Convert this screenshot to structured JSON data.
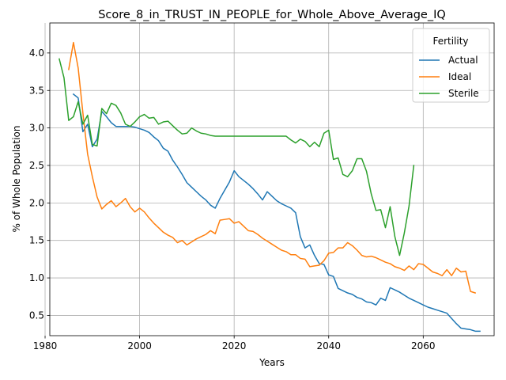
{
  "chart_data": {
    "type": "line",
    "title": "Score_8_in_TRUST_IN_PEOPLE_for_Whole_Above_Average_IQ",
    "xlabel": "Years",
    "ylabel": "% of Whole Population",
    "xlim": [
      1981,
      2075
    ],
    "ylim": [
      0.23,
      4.4
    ],
    "xticks": [
      1980,
      2000,
      2020,
      2040,
      2060
    ],
    "yticks": [
      0.5,
      1.0,
      1.5,
      2.0,
      2.5,
      3.0,
      3.5,
      4.0
    ],
    "ytick_labels": [
      "0.5",
      "1.0",
      "1.5",
      "2.0",
      "2.5",
      "3.0",
      "3.5",
      "4.0"
    ],
    "grid": true,
    "legend": {
      "title": "Fertility",
      "placement": "top-right"
    },
    "series": [
      {
        "name": "Actual",
        "color": "#1f77b4",
        "points": [
          [
            1986,
            3.45
          ],
          [
            1987,
            3.4
          ],
          [
            1988,
            2.95
          ],
          [
            1989,
            3.05
          ],
          [
            1990,
            2.75
          ],
          [
            1991,
            2.85
          ],
          [
            1992,
            3.22
          ],
          [
            1993,
            3.15
          ],
          [
            1994,
            3.07
          ],
          [
            1995,
            3.02
          ],
          [
            1996,
            3.02
          ],
          [
            1997,
            3.02
          ],
          [
            1998,
            3.02
          ],
          [
            1999,
            3.01
          ],
          [
            2000,
            2.99
          ],
          [
            2001,
            2.97
          ],
          [
            2002,
            2.94
          ],
          [
            2003,
            2.88
          ],
          [
            2004,
            2.83
          ],
          [
            2005,
            2.73
          ],
          [
            2006,
            2.69
          ],
          [
            2007,
            2.57
          ],
          [
            2008,
            2.48
          ],
          [
            2009,
            2.38
          ],
          [
            2010,
            2.27
          ],
          [
            2011,
            2.21
          ],
          [
            2012,
            2.15
          ],
          [
            2013,
            2.09
          ],
          [
            2014,
            2.04
          ],
          [
            2015,
            1.97
          ],
          [
            2016,
            1.93
          ],
          [
            2017,
            2.06
          ],
          [
            2018,
            2.17
          ],
          [
            2019,
            2.28
          ],
          [
            2020,
            2.43
          ],
          [
            2021,
            2.35
          ],
          [
            2022,
            2.3
          ],
          [
            2023,
            2.25
          ],
          [
            2024,
            2.19
          ],
          [
            2025,
            2.12
          ],
          [
            2026,
            2.04
          ],
          [
            2027,
            2.15
          ],
          [
            2028,
            2.09
          ],
          [
            2029,
            2.03
          ],
          [
            2030,
            1.99
          ],
          [
            2031,
            1.96
          ],
          [
            2032,
            1.93
          ],
          [
            2033,
            1.87
          ],
          [
            2034,
            1.55
          ],
          [
            2035,
            1.4
          ],
          [
            2036,
            1.44
          ],
          [
            2037,
            1.3
          ],
          [
            2038,
            1.19
          ],
          [
            2039,
            1.18
          ],
          [
            2040,
            1.04
          ],
          [
            2041,
            1.02
          ],
          [
            2042,
            0.86
          ],
          [
            2043,
            0.83
          ],
          [
            2044,
            0.8
          ],
          [
            2045,
            0.78
          ],
          [
            2046,
            0.74
          ],
          [
            2047,
            0.72
          ],
          [
            2048,
            0.68
          ],
          [
            2049,
            0.67
          ],
          [
            2050,
            0.64
          ],
          [
            2051,
            0.73
          ],
          [
            2052,
            0.7
          ],
          [
            2053,
            0.87
          ],
          [
            2054,
            0.84
          ],
          [
            2055,
            0.81
          ],
          [
            2056,
            0.77
          ],
          [
            2057,
            0.73
          ],
          [
            2058,
            0.7
          ],
          [
            2059,
            0.67
          ],
          [
            2060,
            0.64
          ],
          [
            2061,
            0.61
          ],
          [
            2062,
            0.59
          ],
          [
            2063,
            0.57
          ],
          [
            2064,
            0.55
          ],
          [
            2065,
            0.53
          ],
          [
            2066,
            0.46
          ],
          [
            2067,
            0.39
          ],
          [
            2068,
            0.33
          ],
          [
            2069,
            0.32
          ],
          [
            2070,
            0.31
          ],
          [
            2071,
            0.29
          ],
          [
            2072,
            0.29
          ]
        ]
      },
      {
        "name": "Ideal",
        "color": "#ff7f0e",
        "points": [
          [
            1985,
            3.78
          ],
          [
            1986,
            4.14
          ],
          [
            1987,
            3.8
          ],
          [
            1988,
            3.2
          ],
          [
            1989,
            2.65
          ],
          [
            1990,
            2.35
          ],
          [
            1991,
            2.08
          ],
          [
            1992,
            1.92
          ],
          [
            1993,
            1.98
          ],
          [
            1994,
            2.03
          ],
          [
            1995,
            1.95
          ],
          [
            1996,
            2.0
          ],
          [
            1997,
            2.06
          ],
          [
            1998,
            1.95
          ],
          [
            1999,
            1.88
          ],
          [
            2000,
            1.93
          ],
          [
            2001,
            1.88
          ],
          [
            2002,
            1.8
          ],
          [
            2003,
            1.73
          ],
          [
            2004,
            1.67
          ],
          [
            2005,
            1.61
          ],
          [
            2006,
            1.57
          ],
          [
            2007,
            1.54
          ],
          [
            2008,
            1.47
          ],
          [
            2009,
            1.5
          ],
          [
            2010,
            1.44
          ],
          [
            2011,
            1.48
          ],
          [
            2012,
            1.52
          ],
          [
            2013,
            1.55
          ],
          [
            2014,
            1.58
          ],
          [
            2015,
            1.63
          ],
          [
            2016,
            1.59
          ],
          [
            2017,
            1.77
          ],
          [
            2018,
            1.78
          ],
          [
            2019,
            1.79
          ],
          [
            2020,
            1.73
          ],
          [
            2021,
            1.75
          ],
          [
            2022,
            1.69
          ],
          [
            2023,
            1.63
          ],
          [
            2024,
            1.62
          ],
          [
            2025,
            1.58
          ],
          [
            2026,
            1.53
          ],
          [
            2027,
            1.49
          ],
          [
            2028,
            1.45
          ],
          [
            2029,
            1.41
          ],
          [
            2030,
            1.37
          ],
          [
            2031,
            1.35
          ],
          [
            2032,
            1.31
          ],
          [
            2033,
            1.31
          ],
          [
            2034,
            1.26
          ],
          [
            2035,
            1.25
          ],
          [
            2036,
            1.15
          ],
          [
            2037,
            1.16
          ],
          [
            2038,
            1.17
          ],
          [
            2039,
            1.23
          ],
          [
            2040,
            1.33
          ],
          [
            2041,
            1.34
          ],
          [
            2042,
            1.4
          ],
          [
            2043,
            1.4
          ],
          [
            2044,
            1.47
          ],
          [
            2045,
            1.43
          ],
          [
            2046,
            1.37
          ],
          [
            2047,
            1.3
          ],
          [
            2048,
            1.28
          ],
          [
            2049,
            1.29
          ],
          [
            2050,
            1.27
          ],
          [
            2051,
            1.24
          ],
          [
            2052,
            1.21
          ],
          [
            2053,
            1.19
          ],
          [
            2054,
            1.15
          ],
          [
            2055,
            1.13
          ],
          [
            2056,
            1.1
          ],
          [
            2057,
            1.16
          ],
          [
            2058,
            1.11
          ],
          [
            2059,
            1.19
          ],
          [
            2060,
            1.18
          ],
          [
            2061,
            1.13
          ],
          [
            2062,
            1.08
          ],
          [
            2063,
            1.06
          ],
          [
            2064,
            1.03
          ],
          [
            2065,
            1.11
          ],
          [
            2066,
            1.03
          ],
          [
            2067,
            1.13
          ],
          [
            2068,
            1.08
          ],
          [
            2069,
            1.09
          ],
          [
            2070,
            0.82
          ],
          [
            2071,
            0.8
          ]
        ]
      },
      {
        "name": "Sterile",
        "color": "#2ca02c",
        "points": [
          [
            1983,
            3.92
          ],
          [
            1984,
            3.67
          ],
          [
            1985,
            3.1
          ],
          [
            1986,
            3.15
          ],
          [
            1987,
            3.35
          ],
          [
            1988,
            3.05
          ],
          [
            1989,
            3.17
          ],
          [
            1990,
            2.78
          ],
          [
            1991,
            2.76
          ],
          [
            1992,
            3.26
          ],
          [
            1993,
            3.19
          ],
          [
            1994,
            3.33
          ],
          [
            1995,
            3.3
          ],
          [
            1996,
            3.2
          ],
          [
            1997,
            3.05
          ],
          [
            1998,
            3.02
          ],
          [
            1999,
            3.08
          ],
          [
            2000,
            3.15
          ],
          [
            2001,
            3.18
          ],
          [
            2002,
            3.13
          ],
          [
            2003,
            3.14
          ],
          [
            2004,
            3.05
          ],
          [
            2005,
            3.08
          ],
          [
            2006,
            3.09
          ],
          [
            2007,
            3.03
          ],
          [
            2008,
            2.97
          ],
          [
            2009,
            2.92
          ],
          [
            2010,
            2.93
          ],
          [
            2011,
            3.0
          ],
          [
            2012,
            2.96
          ],
          [
            2013,
            2.93
          ],
          [
            2014,
            2.92
          ],
          [
            2015,
            2.9
          ],
          [
            2016,
            2.89
          ],
          [
            2017,
            2.89
          ],
          [
            2018,
            2.89
          ],
          [
            2019,
            2.89
          ],
          [
            2020,
            2.89
          ],
          [
            2021,
            2.89
          ],
          [
            2022,
            2.89
          ],
          [
            2023,
            2.89
          ],
          [
            2024,
            2.89
          ],
          [
            2025,
            2.89
          ],
          [
            2026,
            2.89
          ],
          [
            2027,
            2.89
          ],
          [
            2028,
            2.89
          ],
          [
            2029,
            2.89
          ],
          [
            2030,
            2.89
          ],
          [
            2031,
            2.89
          ],
          [
            2032,
            2.84
          ],
          [
            2033,
            2.8
          ],
          [
            2034,
            2.85
          ],
          [
            2035,
            2.82
          ],
          [
            2036,
            2.75
          ],
          [
            2037,
            2.81
          ],
          [
            2038,
            2.75
          ],
          [
            2039,
            2.93
          ],
          [
            2040,
            2.97
          ],
          [
            2041,
            2.58
          ],
          [
            2042,
            2.6
          ],
          [
            2043,
            2.38
          ],
          [
            2044,
            2.35
          ],
          [
            2045,
            2.43
          ],
          [
            2046,
            2.59
          ],
          [
            2047,
            2.59
          ],
          [
            2048,
            2.42
          ],
          [
            2049,
            2.12
          ],
          [
            2050,
            1.9
          ],
          [
            2051,
            1.91
          ],
          [
            2052,
            1.67
          ],
          [
            2053,
            1.95
          ],
          [
            2054,
            1.55
          ],
          [
            2055,
            1.3
          ],
          [
            2056,
            1.6
          ],
          [
            2057,
            1.96
          ],
          [
            2058,
            2.5
          ]
        ]
      }
    ]
  }
}
